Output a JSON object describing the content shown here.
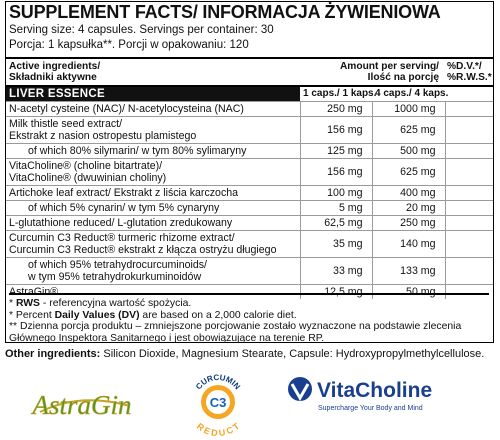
{
  "header": {
    "title": "SUPPLEMENT FACTS/ INFORMACJA ŻYWIENIOWA",
    "serving": "Serving size: 4 capsules. Servings per container: 30",
    "portion": "Porcja: 1 kapsułka**. Porcji w opakowaniu: 120"
  },
  "table": {
    "columns": {
      "ingredients": [
        "Active ingredients/",
        "Składniki aktywne"
      ],
      "amount": [
        "Amount per serving/",
        "Ilość na porcję"
      ],
      "dv": [
        "%D.V.*/",
        "%R.W.S.*"
      ]
    },
    "section": "LIVER ESSENCE",
    "subheaders": [
      "1 caps./",
      "1 kaps.",
      "4 caps./",
      "4 kaps."
    ],
    "rows": [
      {
        "name": [
          "N-acetyl cysteine (NAC)/ N-acetylocysteina (NAC)"
        ],
        "one": "250 mg",
        "four": "1000 mg"
      },
      {
        "name": [
          "Milk thistle seed extract/",
          "Ekstrakt z nasion ostropestu plamistego"
        ],
        "one": "156 mg",
        "four": "625 mg"
      },
      {
        "name": [
          "of which 80% silymarin/ w tym 80% sylimaryny"
        ],
        "one": "125 mg",
        "four": "500 mg"
      },
      {
        "name": [
          "VitaCholine® (choline bitartrate)/",
          "VitaCholine® (dwuwinian choliny)"
        ],
        "one": "156 mg",
        "four": "625 mg"
      },
      {
        "name": [
          "Artichoke leaf extract/ Ekstrakt z liścia karczocha"
        ],
        "one": "100 mg",
        "four": "400 mg"
      },
      {
        "name": [
          "of which 5% cynarin/ w tym 5% cynaryny"
        ],
        "one": "5 mg",
        "four": "20 mg"
      },
      {
        "name": [
          "L-glutathione reduced/ L-glutation zredukowany"
        ],
        "one": "62,5 mg",
        "four": "250 mg"
      },
      {
        "name": [
          "Curcumin C3 Reduct® turmeric rhizome extract/",
          "Curcumin C3 Reduct® ekstrakt z kłącza ostryżu długiego"
        ],
        "one": "35 mg",
        "four": "140 mg"
      },
      {
        "name": [
          "of which 95% tetrahydrocurcuminoids/",
          "w tym 95% tetrahydrokurkuminoidów"
        ],
        "one": "33 mg",
        "four": "133 mg"
      },
      {
        "name": [
          "AstraGin®"
        ],
        "one": "12,5 mg",
        "four": "50 mg"
      }
    ]
  },
  "footnotes": [
    [
      "* ",
      "RWS",
      " - referencyjna wartość spożycia."
    ],
    [
      "* Percent ",
      "Daily Values (DV)",
      " are based on a 2,000 calorie diet."
    ],
    [
      "** Dzienna porcja produktu – zmniejszone porcjowanie zostało wyznaczone na podstawie zlecenia Głównego Inspektora Sanitarnego i jest obowiązujące na terenie RP."
    ]
  ],
  "other_ingredients": {
    "label": "Other ingredients:",
    "text": "Silicon Dioxide, Magnesium Stearate, Capsule: Hydroxypropylmethylcellulose."
  },
  "logos": {
    "astragin": "AstraGin",
    "curcumin": [
      "CURCUMIN",
      "C3",
      "REDUCT"
    ],
    "vitacholine": [
      "VitaCholine",
      "Supercharge Your Body and Mind"
    ]
  }
}
